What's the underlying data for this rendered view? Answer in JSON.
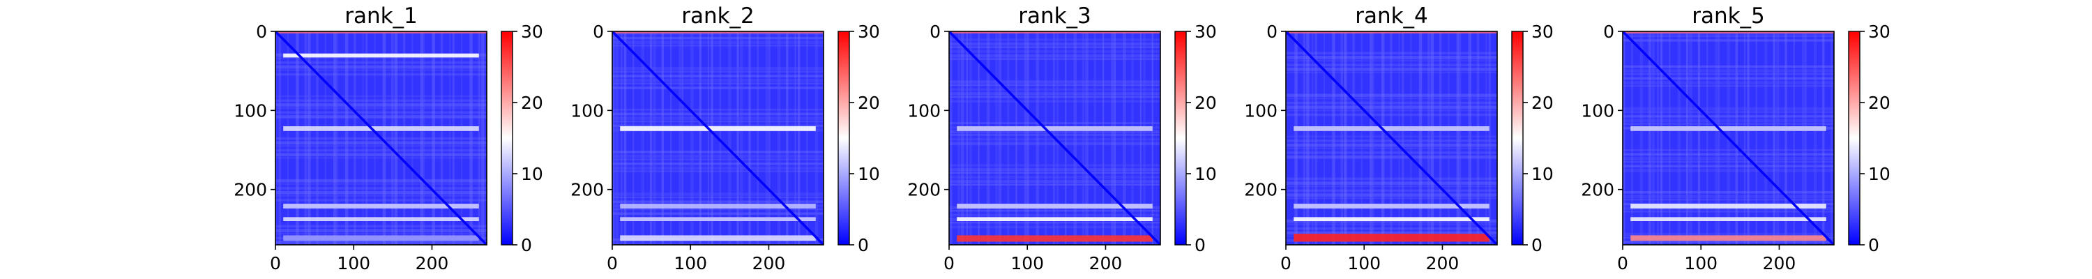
{
  "chart_data": {
    "type": "heatmap",
    "colormap": "bwr",
    "colormap_colors": [
      "#0000ff",
      "#ffffff",
      "#ff0000"
    ],
    "vmin": 0,
    "vmax": 30,
    "colorbar_ticks": [
      "0",
      "10",
      "20",
      "30"
    ],
    "matrix_size": 270,
    "xlim": [
      0,
      270
    ],
    "ylim": [
      270,
      0
    ],
    "x_ticks": [
      "0",
      "100",
      "200"
    ],
    "y_ticks": [
      "0",
      "100",
      "200"
    ],
    "grid": false,
    "panels": [
      {
        "title": "rank_1",
        "bands": [
          {
            "start": 28,
            "end": 33,
            "value": 15
          },
          {
            "start": 120,
            "end": 126,
            "value": 13
          },
          {
            "start": 218,
            "end": 224,
            "value": 12
          },
          {
            "start": 235,
            "end": 240,
            "value": 13
          },
          {
            "start": 258,
            "end": 265,
            "value": 9
          }
        ]
      },
      {
        "title": "rank_2",
        "bands": [
          {
            "start": 120,
            "end": 126,
            "value": 15
          },
          {
            "start": 218,
            "end": 224,
            "value": 11
          },
          {
            "start": 235,
            "end": 240,
            "value": 12
          },
          {
            "start": 258,
            "end": 265,
            "value": 13
          }
        ]
      },
      {
        "title": "rank_3",
        "bands": [
          {
            "start": 120,
            "end": 126,
            "value": 12
          },
          {
            "start": 218,
            "end": 224,
            "value": 12
          },
          {
            "start": 235,
            "end": 240,
            "value": 15
          },
          {
            "start": 258,
            "end": 266,
            "value": 27
          }
        ]
      },
      {
        "title": "rank_4",
        "bands": [
          {
            "start": 120,
            "end": 126,
            "value": 12
          },
          {
            "start": 218,
            "end": 224,
            "value": 12
          },
          {
            "start": 235,
            "end": 240,
            "value": 15
          },
          {
            "start": 256,
            "end": 266,
            "value": 28
          }
        ]
      },
      {
        "title": "rank_5",
        "bands": [
          {
            "start": 120,
            "end": 126,
            "value": 12
          },
          {
            "start": 218,
            "end": 224,
            "value": 14
          },
          {
            "start": 235,
            "end": 240,
            "value": 14
          },
          {
            "start": 258,
            "end": 265,
            "value": 22
          }
        ]
      }
    ]
  }
}
